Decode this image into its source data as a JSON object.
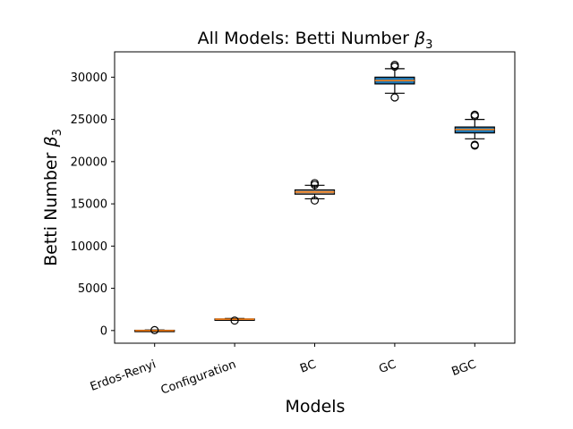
{
  "chart_data": {
    "type": "box",
    "title": "All Models: Betti Number",
    "title_symbol": "β",
    "title_subscript": "3",
    "xlabel": "Models",
    "ylabel": "Betti Number",
    "ylabel_symbol": "β",
    "ylabel_subscript": "3",
    "ylim": [
      -1500,
      33000
    ],
    "yticks": [
      0,
      5000,
      10000,
      15000,
      20000,
      25000,
      30000
    ],
    "ytick_labels": [
      "0",
      "5000",
      "10000",
      "15000",
      "20000",
      "25000",
      "30000"
    ],
    "categories": [
      "Erdos-Renyi",
      "Configuration",
      "BC",
      "GC",
      "BGC"
    ],
    "box_colors": [
      "#9e9e9e",
      "#9e9e9e",
      "#9e9e9e",
      "#1f77b4",
      "#1f77b4"
    ],
    "median_color": "#ff7f0e",
    "boxes": [
      {
        "whislo": -60,
        "q1": -30,
        "med": 0,
        "q3": 30,
        "whishi": 60,
        "fliers": [
          50
        ]
      },
      {
        "whislo": 1250,
        "q1": 1310,
        "med": 1340,
        "q3": 1370,
        "whishi": 1430,
        "fliers": [
          1180
        ]
      },
      {
        "whislo": 15600,
        "q1": 16150,
        "med": 16400,
        "q3": 16650,
        "whishi": 17200,
        "fliers": [
          15400,
          17250,
          17450
        ]
      },
      {
        "whislo": 28100,
        "q1": 29200,
        "med": 29600,
        "q3": 30000,
        "whishi": 31000,
        "fliers": [
          27600,
          31250,
          31450
        ]
      },
      {
        "whislo": 22700,
        "q1": 23400,
        "med": 23800,
        "q3": 24100,
        "whishi": 25000,
        "fliers": [
          21900,
          22000,
          25400,
          25550
        ]
      }
    ]
  }
}
